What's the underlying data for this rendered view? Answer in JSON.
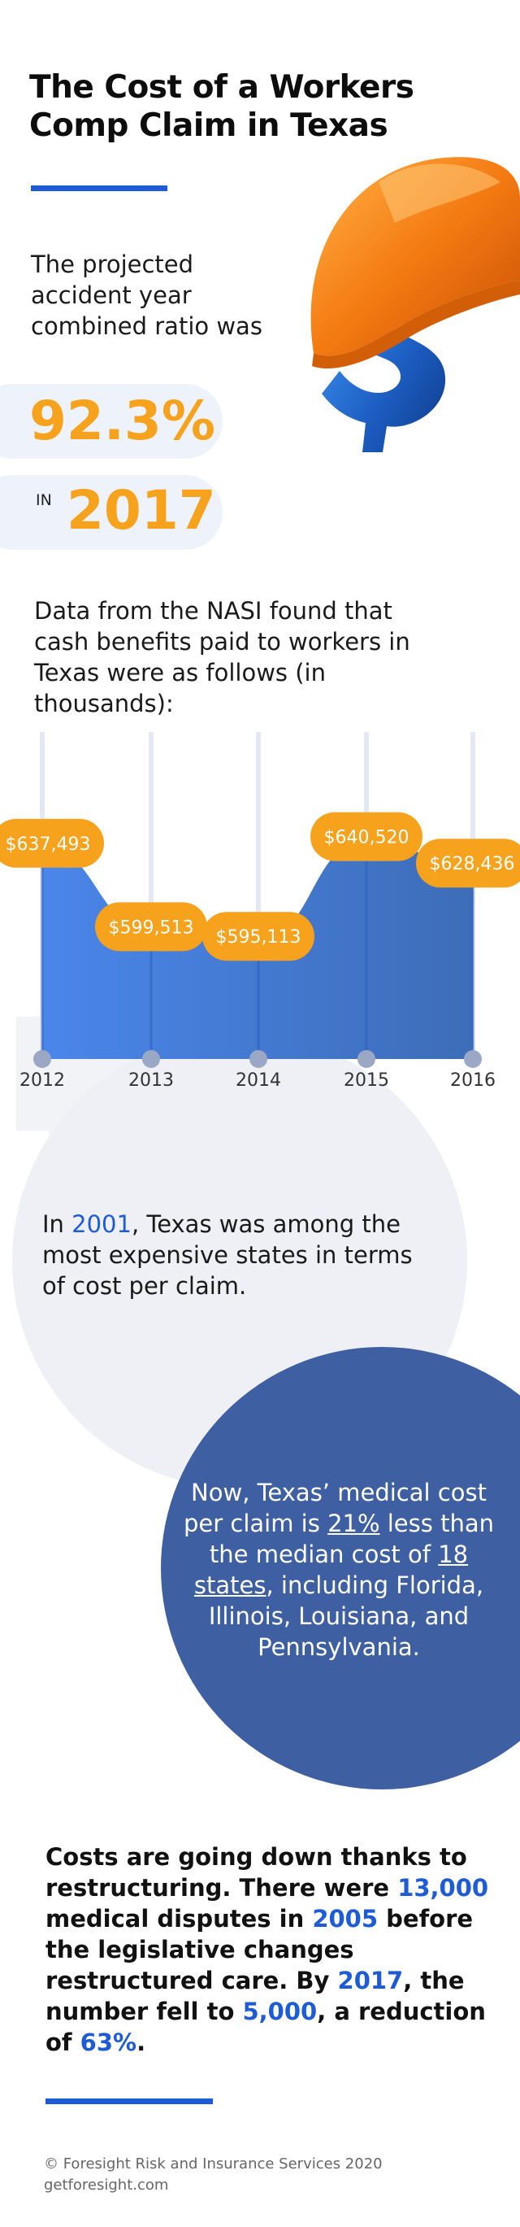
{
  "title": "The Cost of a Workers Comp Claim in Texas",
  "ratio": {
    "label": "The projected accident year combined ratio was",
    "value": "92.3%",
    "in_label": "IN",
    "year": "2017"
  },
  "nasi": {
    "text": "Data from the NASI found that cash benefits paid to workers in Texas were as follows (in thousands):"
  },
  "chart_data": {
    "type": "area",
    "categories": [
      "2012",
      "2013",
      "2014",
      "2015",
      "2016"
    ],
    "values": [
      637493,
      599513,
      595113,
      640520,
      628436
    ],
    "data_labels": [
      "$637,493",
      "$599,513",
      "$595,113",
      "$640,520",
      "$628,436"
    ],
    "title": "",
    "xlabel": "",
    "ylabel": "",
    "grid": true,
    "colors": {
      "area": "#3f78e0",
      "label_bg": "#f6a21c",
      "label_text": "#ffffff"
    }
  },
  "p2001": {
    "pre": "In ",
    "year": "2001",
    "post": ", Texas was among the most expensive states in terms of cost per claim."
  },
  "circle": {
    "t1": "Now, Texas’ medical cost per claim is ",
    "pct": "21%",
    "t2": " less than the median cost of ",
    "states": "18 states",
    "t3": ", including Florida, Illinois, Louisiana, and Pennsylvania."
  },
  "costs": {
    "t1": "Costs are going down thanks to restructuring. There were ",
    "n1": "13,000",
    "t2": " medical disputes in ",
    "y1": "2005",
    "t3": " before the legislative changes restructured care. By ",
    "y2": "2017",
    "t4": ", the number fell to ",
    "n2": "5,000",
    "t5": ", a reduction of ",
    "pct": "63%",
    "t6": "."
  },
  "footer": {
    "copyright": "© Foresight Risk and Insurance Services 2020",
    "site": "getforesight.com"
  },
  "colors": {
    "accent_blue": "#1e5bd6",
    "accent_orange": "#f6a21c",
    "circle_blue": "#3f5fa3"
  }
}
